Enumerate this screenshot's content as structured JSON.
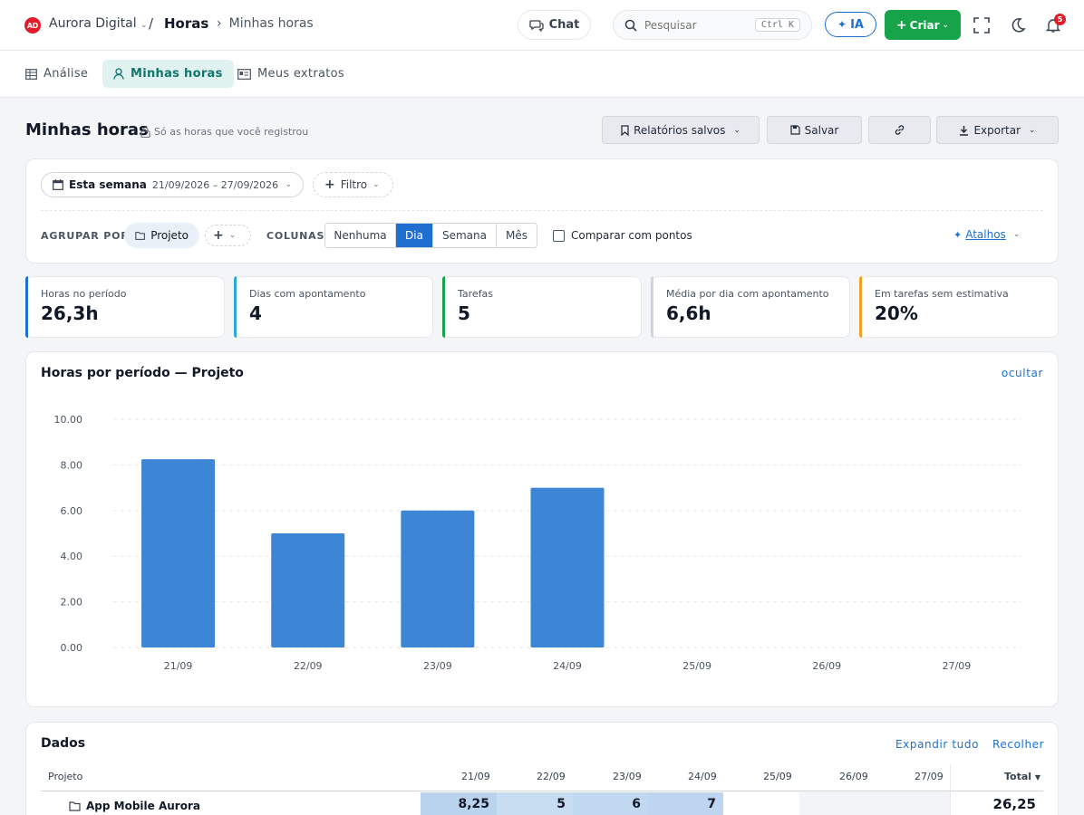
{
  "topbar": {
    "logo_text": "AD",
    "org_name": "Aurora Digital",
    "separator": "/",
    "section": "Horas",
    "breadcrumb_current": "Minhas horas",
    "chat_label": "Chat",
    "search_placeholder": "Pesquisar",
    "search_shortcut": "Ctrl K",
    "ia_label": "IA",
    "create_label": "Criar",
    "notifications_count": "5"
  },
  "tabs": [
    {
      "label": "Análise",
      "icon": "table-icon"
    },
    {
      "label": "Minhas horas",
      "icon": "user-icon",
      "active": true
    },
    {
      "label": "Meus extratos",
      "icon": "id-card-icon"
    }
  ],
  "header": {
    "title": "Minhas horas",
    "subtitle": "Só as horas que você registrou",
    "saved_reports": "Relatórios salvos",
    "save": "Salvar",
    "export": "Exportar"
  },
  "filters": {
    "period_label": "Esta semana",
    "period_range": "21/09/2026 – 27/09/2026",
    "filter_label": "Filtro",
    "group_by_label": "AGRUPAR POR",
    "group_by_value": "Projeto",
    "columns_label": "COLUNAS",
    "column_options": [
      "Nenhuma",
      "Dia",
      "Semana",
      "Mês"
    ],
    "column_selected": "Dia",
    "compare_label": "Comparar com pontos",
    "shortcuts_label": "Atalhos"
  },
  "kpis": [
    {
      "label": "Horas no período",
      "value": "26,3h",
      "color": "#1f6fd1"
    },
    {
      "label": "Dias com apontamento",
      "value": "4",
      "color": "#2fa8d8"
    },
    {
      "label": "Tarefas",
      "value": "5",
      "color": "#16a34a"
    },
    {
      "label": "Média por dia com apontamento",
      "value": "6,6h",
      "color": "#d1d5db"
    },
    {
      "label": "Em tarefas sem estimativa",
      "value": "20%",
      "color": "#f0a020"
    }
  ],
  "chart_card": {
    "title": "Horas por período — Projeto",
    "hide_label": "ocultar"
  },
  "chart_data": {
    "type": "bar",
    "categories": [
      "21/09",
      "22/09",
      "23/09",
      "24/09",
      "25/09",
      "26/09",
      "27/09"
    ],
    "values": [
      8.25,
      5,
      6,
      7,
      0,
      0,
      0
    ],
    "yticks": [
      "10.00",
      "8.00",
      "6.00",
      "4.00",
      "2.00",
      "0.00"
    ],
    "ylim": [
      0,
      10
    ],
    "grid": true,
    "color": "#3d86d6"
  },
  "data_card": {
    "title": "Dados",
    "expand_all": "Expandir tudo",
    "collapse": "Recolher",
    "columns": [
      "Projeto",
      "21/09",
      "22/09",
      "23/09",
      "24/09",
      "25/09",
      "26/09",
      "27/09",
      "Total"
    ],
    "rows": [
      {
        "name": "App Mobile Aurora",
        "values": [
          "8,25",
          "5",
          "6",
          "7",
          "",
          "",
          ""
        ],
        "total": "26,25"
      }
    ]
  }
}
